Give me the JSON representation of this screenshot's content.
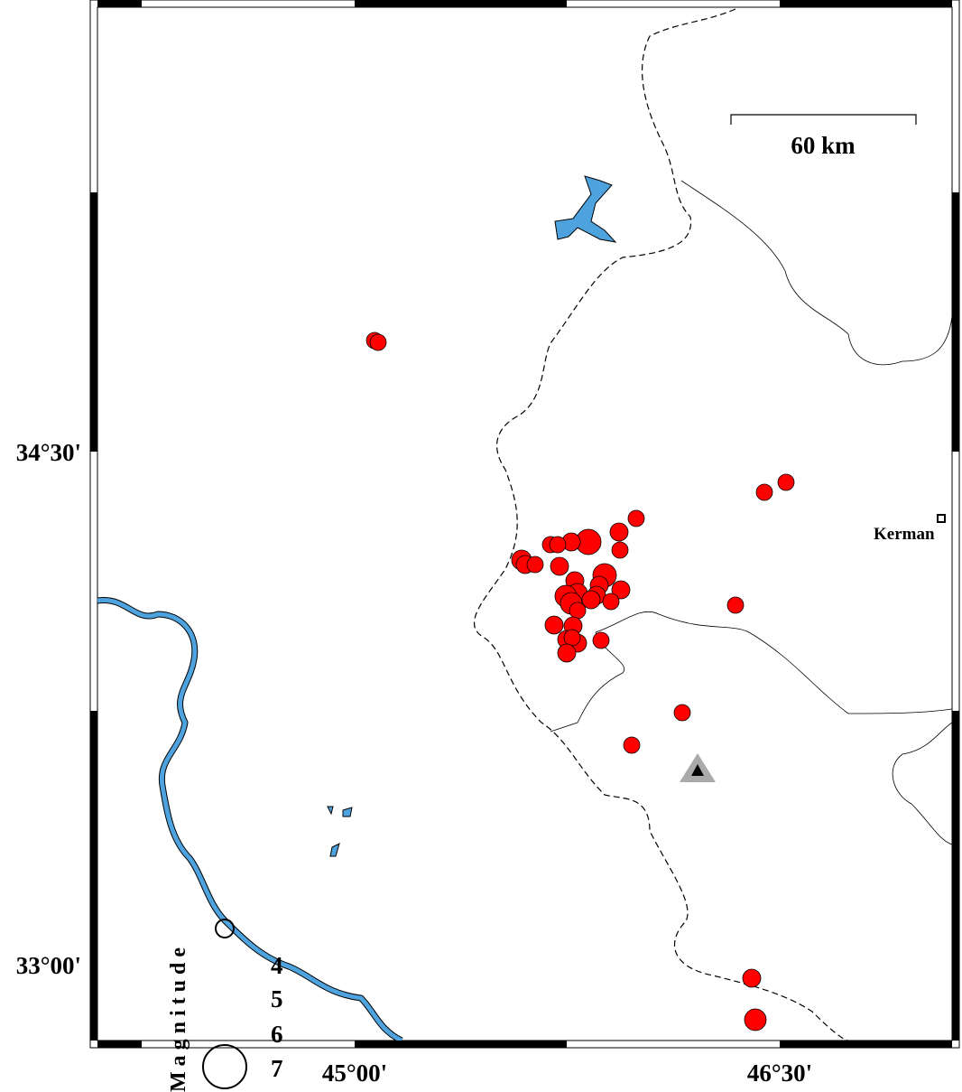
{
  "frame": {
    "x_labels": [
      "45°00'",
      "46°30'"
    ],
    "y_labels": [
      "34°30'",
      "33°00'"
    ]
  },
  "scale_bar": {
    "label": "60 km"
  },
  "places": [
    {
      "label": "Kerman"
    }
  ],
  "legend": {
    "title": "Magnitude",
    "items": [
      "4",
      "5",
      "6",
      "7"
    ]
  }
}
